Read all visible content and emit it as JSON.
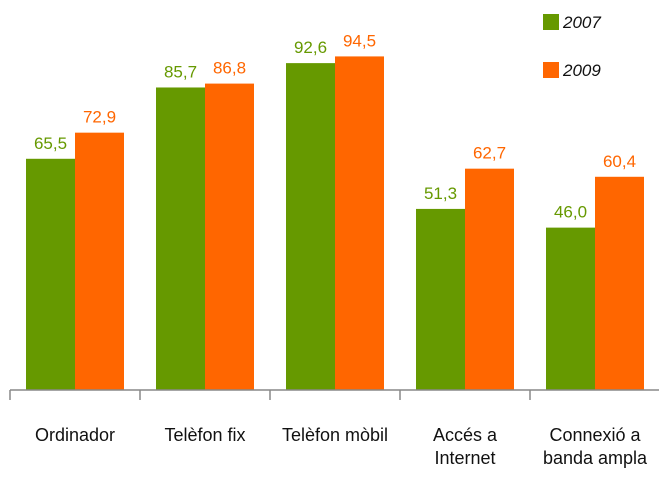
{
  "chart_data": {
    "type": "bar",
    "categories": [
      "Ordinador",
      "Telèfon fix",
      "Telèfon mòbil",
      "Accés a Internet",
      "Connexió a banda ampla"
    ],
    "series": [
      {
        "name": "2007",
        "color": "#669900",
        "values": [
          65.5,
          85.7,
          92.6,
          51.3,
          46.0
        ],
        "value_labels": [
          "65,5",
          "85,7",
          "92,6",
          "51,3",
          "46,0"
        ]
      },
      {
        "name": "2009",
        "color": "#ff6600",
        "values": [
          72.9,
          86.8,
          94.5,
          62.7,
          60.4
        ],
        "value_labels": [
          "72,9",
          "86,8",
          "94,5",
          "62,7",
          "60,4"
        ]
      }
    ],
    "ylim": [
      0,
      100
    ],
    "legend": "top-right"
  }
}
